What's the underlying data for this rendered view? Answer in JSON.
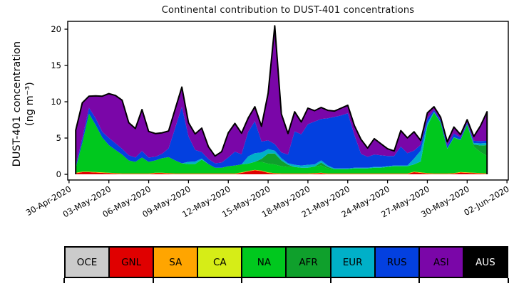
{
  "figure": {
    "title": "Continental contribution to DUST-401 concentrations",
    "ylabel_line1": "DUST-401 concentration",
    "ylabel_line2": "(ng m⁻³)"
  },
  "legend": {
    "items": [
      {
        "label": "OCE",
        "color": "#cbcbcb",
        "text_color": "#000000"
      },
      {
        "label": "GNL",
        "color": "#e00000",
        "text_color": "#000000"
      },
      {
        "label": "SA",
        "color": "#ffa500",
        "text_color": "#000000"
      },
      {
        "label": "CA",
        "color": "#d6ed17",
        "text_color": "#000000"
      },
      {
        "label": "NA",
        "color": "#00c81e",
        "text_color": "#000000"
      },
      {
        "label": "AFR",
        "color": "#0fa02c",
        "text_color": "#000000"
      },
      {
        "label": "EUR",
        "color": "#00b0c8",
        "text_color": "#000000"
      },
      {
        "label": "RUS",
        "color": "#0340e0",
        "text_color": "#000000"
      },
      {
        "label": "ASI",
        "color": "#7a06a8",
        "text_color": "#000000"
      },
      {
        "label": "AUS",
        "color": "#000000",
        "text_color": "#ffffff"
      }
    ]
  },
  "chart_data": {
    "type": "area",
    "stacked": true,
    "title": "Continental contribution to DUST-401 concentrations",
    "xlabel": "",
    "ylabel": "DUST-401 concentration (ng m⁻³)",
    "grid": false,
    "outline_color": "#000000",
    "x_unit": "days since 30-Apr-2020 00:00, 12-hourly samples",
    "x_start": 0.5,
    "x_step": 0.5,
    "n_points": 63,
    "xlim": [
      -0.1,
      33.1
    ],
    "ylim": [
      -0.78,
      21.08
    ],
    "yticks": [
      0,
      5,
      10,
      15,
      20
    ],
    "xtick_days": [
      0,
      3,
      6,
      9,
      12,
      15,
      18,
      21,
      24,
      27,
      30,
      33
    ],
    "xtick_labels": [
      "30-Apr-2020",
      "03-May-2020",
      "06-May-2020",
      "09-May-2020",
      "12-May-2020",
      "15-May-2020",
      "18-May-2020",
      "21-May-2020",
      "24-May-2020",
      "27-May-2020",
      "30-May-2020",
      "02-Jun-2020"
    ],
    "series": [
      {
        "name": "OCE",
        "color": "#cbcbcb",
        "const": 0
      },
      {
        "name": "GNL",
        "color": "#e00000",
        "values": [
          0.15,
          0.3,
          0.3,
          0.25,
          0.2,
          0.15,
          0.1,
          0.05,
          0.05,
          0.05,
          0.05,
          0.05,
          0.15,
          0.15,
          0.1,
          0.05,
          0.05,
          0.05,
          0.05,
          0.05,
          0.05,
          0.05,
          0.05,
          0.05,
          0.05,
          0.2,
          0.4,
          0.55,
          0.45,
          0.2,
          0.1,
          0.05,
          0.05,
          0.05,
          0.05,
          0.05,
          0.1,
          0.15,
          0.05,
          0.05,
          0.05,
          0.05,
          0.05,
          0.05,
          0.05,
          0.05,
          0.05,
          0.05,
          0.05,
          0.05,
          0.05,
          0.3,
          0.2,
          0.1,
          0.05,
          0.05,
          0.05,
          0.1,
          0.25,
          0.2,
          0.15,
          0.1,
          0.05
        ]
      },
      {
        "name": "SA",
        "color": "#ffa500",
        "const": 0.07
      },
      {
        "name": "CA",
        "color": "#d6ed17",
        "const": 0
      },
      {
        "name": "NA",
        "color": "#00c81e",
        "values": [
          0.6,
          4.0,
          8.0,
          6.5,
          4.8,
          3.8,
          3.2,
          2.6,
          1.8,
          1.6,
          2.2,
          1.6,
          1.7,
          2.0,
          2.2,
          1.8,
          1.4,
          1.3,
          1.3,
          1.9,
          1.3,
          0.8,
          0.8,
          1.0,
          1.1,
          1.1,
          1.0,
          1.1,
          1.2,
          1.2,
          1.2,
          1.0,
          0.9,
          0.9,
          0.8,
          0.8,
          0.9,
          1.0,
          0.7,
          0.6,
          0.6,
          0.6,
          0.7,
          0.7,
          0.7,
          0.8,
          0.8,
          0.9,
          1.0,
          1.0,
          1.0,
          1.0,
          1.5,
          6.5,
          8.4,
          7.0,
          3.4,
          4.9,
          4.4,
          6.6,
          3.6,
          2.9,
          2.4
        ]
      },
      {
        "name": "AFR",
        "color": "#0fa02c",
        "values": [
          0,
          0,
          0,
          0,
          0,
          0,
          0,
          0,
          0,
          0,
          0,
          0,
          0,
          0,
          0,
          0,
          0,
          0,
          0,
          0,
          0,
          0,
          0,
          0,
          0,
          0,
          0,
          0,
          0.4,
          1.4,
          1.5,
          0.8,
          0.3,
          0,
          0,
          0,
          0,
          0.4,
          0.2,
          0,
          0,
          0,
          0,
          0,
          0,
          0,
          0,
          0,
          0,
          0,
          0,
          0,
          0,
          0,
          0,
          0,
          0,
          0,
          0,
          0,
          0.3,
          0.9,
          1.5
        ]
      },
      {
        "name": "EUR",
        "color": "#00b0c8",
        "values": [
          0.05,
          0,
          0,
          0,
          0,
          0,
          0,
          0,
          0,
          0,
          0,
          0,
          0,
          0,
          0,
          0,
          0,
          0.3,
          0.35,
          0.15,
          0,
          0,
          0,
          0,
          0,
          0,
          1.0,
          1.2,
          0.9,
          0.6,
          0.4,
          0.3,
          0.2,
          0.3,
          0.3,
          0.4,
          0.3,
          0.3,
          0.2,
          0.1,
          0.1,
          0.1,
          0.1,
          0.1,
          0.1,
          0.1,
          0.1,
          0.1,
          0.1,
          0.1,
          0.1,
          0.8,
          1.5,
          0.4,
          0.1,
          0.05,
          0.05,
          0.05,
          0.05,
          0.05,
          0.2,
          0.3,
          0.3
        ]
      },
      {
        "name": "RUS",
        "color": "#0340e0",
        "values": [
          0.3,
          0.6,
          0.8,
          0.9,
          0.8,
          1.0,
          0.9,
          0.8,
          0.7,
          0.6,
          0.9,
          0.6,
          0.5,
          0.6,
          1.2,
          4.5,
          7.8,
          3.5,
          1.6,
          0.9,
          0.7,
          0.6,
          0.7,
          1.2,
          1.9,
          1.4,
          3.4,
          4.4,
          1.5,
          1.2,
          0.9,
          0.8,
          1.2,
          4.6,
          4.3,
          5.6,
          5.9,
          5.7,
          6.5,
          7.1,
          7.3,
          7.6,
          4.5,
          1.9,
          1.5,
          1.7,
          1.6,
          1.4,
          1.3,
          2.6,
          1.7,
          1.1,
          0.8,
          0.6,
          0.25,
          0.3,
          0.4,
          0.5,
          0.3,
          0.2,
          0.3,
          0.3,
          0.3
        ]
      },
      {
        "name": "ASI",
        "color": "#7a06a8",
        "values": [
          4.9,
          4.9,
          1.6,
          3.1,
          4.9,
          6.1,
          6.6,
          6.7,
          4.5,
          4.0,
          5.7,
          3.6,
          3.2,
          2.9,
          2.4,
          2.6,
          2.7,
          1.9,
          2.2,
          3.3,
          1.7,
          1.0,
          1.5,
          3.4,
          3.9,
          2.9,
          1.9,
          2.0,
          2.1,
          6.5,
          16.3,
          5.3,
          2.9,
          2.7,
          1.7,
          2.2,
          1.5,
          1.6,
          1.1,
          0.8,
          1.0,
          1.1,
          1.3,
          2.0,
          1.2,
          2.2,
          1.6,
          1.0,
          0.7,
          2.2,
          2.1,
          2.6,
          0.6,
          0.8,
          0.45,
          0.4,
          0.5,
          0.9,
          0.4,
          0.4,
          0.6,
          2.1,
          4.0
        ]
      },
      {
        "name": "AUS",
        "color": "#000000",
        "const": 0
      }
    ]
  }
}
